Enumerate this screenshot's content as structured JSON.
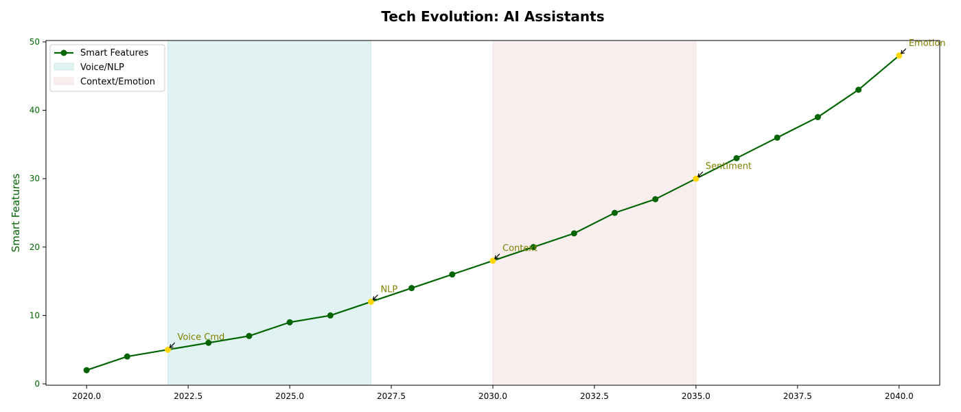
{
  "chart_data": {
    "type": "line",
    "title": "Tech Evolution: AI Assistants",
    "xlabel": "",
    "ylabel": "Smart Features",
    "xlim": [
      2019,
      2041
    ],
    "ylim": [
      0,
      50
    ],
    "x_ticks": [
      "2020.0",
      "2022.5",
      "2025.0",
      "2027.5",
      "2030.0",
      "2032.5",
      "2035.0",
      "2037.5",
      "2040.0"
    ],
    "x_tick_values": [
      2020,
      2022.5,
      2025,
      2027.5,
      2030,
      2032.5,
      2035,
      2037.5,
      2040
    ],
    "y_ticks": [
      "0",
      "10",
      "20",
      "30",
      "40",
      "50"
    ],
    "y_tick_values": [
      0,
      10,
      20,
      30,
      40,
      50
    ],
    "grid": false,
    "legend_position": "top-left",
    "series": [
      {
        "name": "Smart Features",
        "color": "#006400",
        "x": [
          2020,
          2021,
          2022,
          2023,
          2024,
          2025,
          2026,
          2027,
          2028,
          2029,
          2030,
          2031,
          2032,
          2033,
          2034,
          2035,
          2036,
          2037,
          2038,
          2039,
          2040
        ],
        "y": [
          2,
          4,
          5,
          6,
          7,
          9,
          10,
          12,
          14,
          16,
          18,
          20,
          22,
          25,
          27,
          30,
          33,
          36,
          39,
          43,
          48
        ]
      }
    ],
    "spans": [
      {
        "name": "Voice/NLP",
        "x_start": 2022,
        "x_end": 2027,
        "color": "#b2dfdb"
      },
      {
        "name": "Context/Emotion",
        "x_start": 2030,
        "x_end": 2035,
        "color": "#f0d5d5"
      }
    ],
    "annotations": [
      {
        "text": "Voice Cmd",
        "x": 2022,
        "y": 5
      },
      {
        "text": "NLP",
        "x": 2027,
        "y": 12
      },
      {
        "text": "Context",
        "x": 2030,
        "y": 18
      },
      {
        "text": "Sentiment",
        "x": 2035,
        "y": 30
      },
      {
        "text": "Emotion",
        "x": 2040,
        "y": 48
      }
    ],
    "highlight_color": "#ffd700",
    "annotation_color": "#808000"
  }
}
